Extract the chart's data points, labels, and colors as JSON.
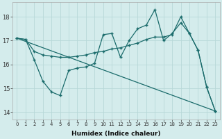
{
  "xlabel": "Humidex (Indice chaleur)",
  "bg_color": "#d4ecec",
  "line_color": "#1a6b6b",
  "grid_color": "#b8d8d8",
  "xlim": [
    -0.5,
    23.5
  ],
  "ylim": [
    13.7,
    18.6
  ],
  "yticks": [
    14,
    15,
    16,
    17,
    18
  ],
  "xticks": [
    0,
    1,
    2,
    3,
    4,
    5,
    6,
    7,
    8,
    9,
    10,
    11,
    12,
    13,
    14,
    15,
    16,
    17,
    18,
    19,
    20,
    21,
    22,
    23
  ],
  "lines": [
    {
      "x": [
        0,
        1,
        2,
        3,
        4,
        5,
        6,
        7,
        8,
        9,
        10,
        11,
        12,
        13,
        14,
        15,
        16,
        17,
        18,
        19,
        20,
        21,
        22,
        23
      ],
      "y": [
        17.1,
        17.05,
        16.2,
        15.3,
        14.85,
        14.7,
        15.75,
        15.85,
        15.9,
        16.05,
        17.25,
        17.3,
        16.3,
        17.0,
        17.5,
        17.65,
        18.3,
        17.0,
        17.3,
        17.75,
        17.3,
        16.6,
        15.05,
        14.05
      ]
    },
    {
      "x": [
        0,
        1,
        2,
        3,
        4,
        5,
        6,
        7,
        8,
        9,
        10,
        11,
        12,
        13,
        14,
        15,
        16,
        17,
        18,
        19,
        20,
        21,
        22,
        23
      ],
      "y": [
        17.1,
        17.05,
        16.55,
        16.4,
        16.35,
        16.3,
        16.3,
        16.35,
        16.4,
        16.5,
        16.55,
        16.65,
        16.7,
        16.8,
        16.9,
        17.05,
        17.15,
        17.15,
        17.25,
        18.0,
        17.3,
        16.6,
        15.05,
        14.05
      ]
    },
    {
      "x": [
        0,
        23
      ],
      "y": [
        17.1,
        14.05
      ]
    }
  ]
}
